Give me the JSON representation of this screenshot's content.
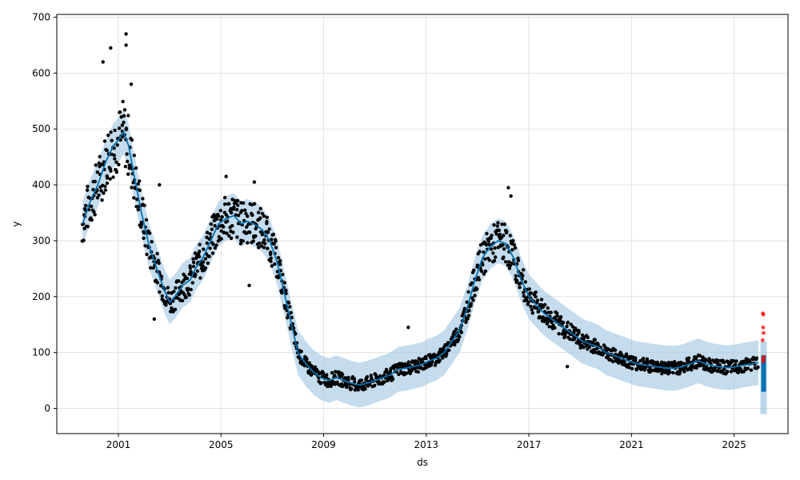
{
  "chart_data": {
    "type": "line",
    "title": "",
    "xlabel": "ds",
    "ylabel": "y",
    "xlim": [
      1998.6,
      2027.1
    ],
    "ylim": [
      -45,
      705
    ],
    "xticks": [
      2001,
      2005,
      2009,
      2013,
      2017,
      2021,
      2025
    ],
    "xtick_labels": [
      "2001",
      "2005",
      "2009",
      "2013",
      "2017",
      "2021",
      "2025"
    ],
    "yticks": [
      0,
      100,
      200,
      300,
      400,
      500,
      600,
      700
    ],
    "ytick_labels": [
      "0",
      "100",
      "200",
      "300",
      "400",
      "500",
      "600",
      "700"
    ],
    "grid": true,
    "colors": {
      "observed": "#000000",
      "forecast": "#0072B2",
      "uncertainty": "#9DC4E1",
      "anomaly": "#FF0000"
    },
    "forecast_trend": {
      "x": [
        1999.6,
        1999.9,
        2000.2,
        2000.5,
        2000.8,
        2001.0,
        2001.2,
        2001.4,
        2001.6,
        2001.9,
        2002.2,
        2002.5,
        2002.8,
        2003.0,
        2003.2,
        2003.5,
        2003.8,
        2004.0,
        2004.3,
        2004.6,
        2004.9,
        2005.2,
        2005.5,
        2005.8,
        2006.0,
        2006.3,
        2006.6,
        2006.9,
        2007.2,
        2007.5,
        2007.8,
        2008.0,
        2008.3,
        2008.6,
        2008.9,
        2009.2,
        2009.5,
        2009.8,
        2010.1,
        2010.4,
        2010.7,
        2011.0,
        2011.3,
        2011.6,
        2011.9,
        2012.2,
        2012.5,
        2012.8,
        2013.1,
        2013.4,
        2013.7,
        2014.0,
        2014.3,
        2014.6,
        2014.9,
        2015.2,
        2015.5,
        2015.8,
        2016.1,
        2016.4,
        2016.7,
        2017.0,
        2017.3,
        2017.6,
        2017.9,
        2018.2,
        2018.5,
        2018.8,
        2019.1,
        2019.4,
        2019.7,
        2020.0,
        2020.3,
        2020.6,
        2020.9,
        2021.2,
        2021.5,
        2021.8,
        2022.1,
        2022.4,
        2022.7,
        2023.0,
        2023.3,
        2023.6,
        2023.9,
        2024.2,
        2024.5,
        2024.8,
        2025.1,
        2025.4,
        2025.7,
        2025.95
      ],
      "y": [
        330,
        370,
        400,
        440,
        470,
        480,
        495,
        470,
        420,
        350,
        290,
        250,
        210,
        190,
        200,
        220,
        230,
        250,
        270,
        300,
        330,
        340,
        345,
        330,
        335,
        330,
        320,
        300,
        260,
        200,
        140,
        100,
        80,
        65,
        55,
        50,
        55,
        50,
        45,
        42,
        45,
        50,
        55,
        60,
        70,
        72,
        75,
        78,
        85,
        90,
        100,
        120,
        140,
        180,
        230,
        270,
        290,
        300,
        295,
        270,
        230,
        200,
        185,
        170,
        160,
        150,
        140,
        130,
        120,
        115,
        110,
        100,
        95,
        90,
        85,
        80,
        78,
        76,
        74,
        72,
        72,
        75,
        80,
        85,
        80,
        76,
        74,
        73,
        75,
        78,
        80,
        82
      ]
    },
    "uncertainty_band": {
      "x": [
        1999.6,
        1999.9,
        2000.2,
        2000.5,
        2000.8,
        2001.0,
        2001.2,
        2001.4,
        2001.6,
        2001.9,
        2002.2,
        2002.5,
        2002.8,
        2003.0,
        2003.2,
        2003.5,
        2003.8,
        2004.0,
        2004.3,
        2004.6,
        2004.9,
        2005.2,
        2005.5,
        2005.8,
        2006.0,
        2006.3,
        2006.6,
        2006.9,
        2007.2,
        2007.5,
        2007.8,
        2008.0,
        2008.3,
        2008.6,
        2008.9,
        2009.2,
        2009.5,
        2009.8,
        2010.1,
        2010.4,
        2010.7,
        2011.0,
        2011.3,
        2011.6,
        2011.9,
        2012.2,
        2012.5,
        2012.8,
        2013.1,
        2013.4,
        2013.7,
        2014.0,
        2014.3,
        2014.6,
        2014.9,
        2015.2,
        2015.5,
        2015.8,
        2016.1,
        2016.4,
        2016.7,
        2017.0,
        2017.3,
        2017.6,
        2017.9,
        2018.2,
        2018.5,
        2018.8,
        2019.1,
        2019.4,
        2019.7,
        2020.0,
        2020.3,
        2020.6,
        2020.9,
        2021.2,
        2021.5,
        2021.8,
        2022.1,
        2022.4,
        2022.7,
        2023.0,
        2023.3,
        2023.6,
        2023.9,
        2024.2,
        2024.5,
        2024.8,
        2025.1,
        2025.4,
        2025.7,
        2025.95
      ],
      "lower": [
        290,
        330,
        360,
        400,
        430,
        440,
        455,
        430,
        380,
        310,
        250,
        210,
        170,
        150,
        160,
        180,
        190,
        210,
        230,
        260,
        290,
        300,
        305,
        290,
        295,
        290,
        280,
        260,
        220,
        160,
        100,
        60,
        40,
        25,
        15,
        10,
        15,
        10,
        5,
        2,
        5,
        10,
        15,
        20,
        30,
        32,
        35,
        38,
        45,
        50,
        60,
        80,
        100,
        140,
        190,
        230,
        250,
        260,
        255,
        230,
        190,
        160,
        145,
        130,
        120,
        110,
        100,
        90,
        80,
        75,
        70,
        60,
        55,
        50,
        45,
        40,
        38,
        36,
        34,
        32,
        32,
        35,
        40,
        45,
        40,
        36,
        34,
        33,
        35,
        38,
        40,
        42
      ],
      "upper": [
        370,
        410,
        440,
        480,
        510,
        520,
        535,
        510,
        460,
        390,
        330,
        290,
        250,
        230,
        240,
        260,
        270,
        290,
        310,
        340,
        370,
        380,
        385,
        370,
        375,
        370,
        360,
        340,
        300,
        240,
        180,
        140,
        120,
        105,
        95,
        90,
        95,
        90,
        85,
        82,
        85,
        90,
        95,
        100,
        110,
        112,
        115,
        118,
        125,
        130,
        140,
        160,
        180,
        220,
        270,
        310,
        330,
        340,
        335,
        310,
        270,
        240,
        225,
        210,
        200,
        190,
        180,
        170,
        160,
        155,
        150,
        140,
        135,
        130,
        125,
        120,
        118,
        116,
        114,
        112,
        112,
        115,
        120,
        125,
        120,
        116,
        114,
        113,
        115,
        118,
        120,
        122
      ]
    },
    "forecast_tail": {
      "x": 2026.15,
      "y_range": [
        30,
        95
      ],
      "band_range": [
        -10,
        120
      ]
    },
    "anomaly_points": {
      "x": [
        2026.12,
        2026.14,
        2026.13,
        2026.15,
        2026.11,
        2026.16,
        2026.13,
        2026.14
      ],
      "y": [
        170,
        168,
        145,
        135,
        122,
        92,
        88,
        84
      ]
    }
  }
}
